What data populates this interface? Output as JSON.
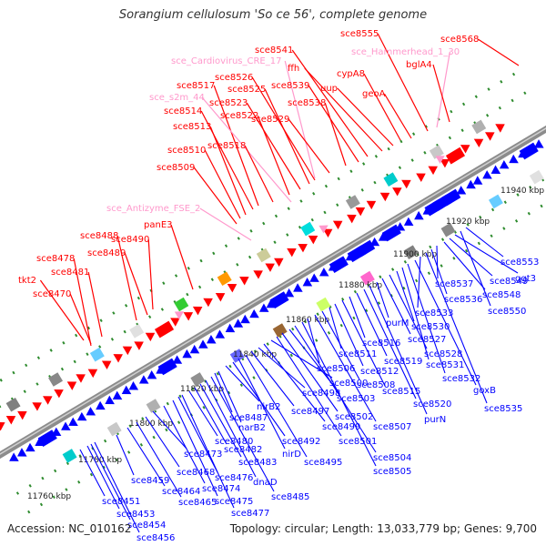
{
  "title": "Sorangium cellulosum 'So ce 56', complete genome",
  "accession": "Accession: NC_010162",
  "summary": "Topology: circular; Length: 13,033,779 bp; Genes: 9,700",
  "colors": {
    "axis": "#8c8c8c",
    "forward": "#ff0000",
    "reverse": "#0000ff",
    "ncrna": "#ff99cc",
    "dots": "#2e8b2e"
  },
  "scale_labels": [
    "11760 kbp",
    "11780 kbp",
    "11800 kbp",
    "11820 kbp",
    "11840 kbp",
    "11860 kbp",
    "11880 kbp",
    "11900 kbp",
    "11920 kbp",
    "11940 kbp"
  ],
  "top_labels": [
    "tkt2",
    "sce8470",
    "sce8478",
    "sce8481",
    "sce8488",
    "sce8489",
    "sce8490",
    "panE3",
    "sce_Antizyme_FSE_2",
    "sce8509",
    "sce8510",
    "sce8513",
    "sce8514",
    "sce8517",
    "sce_s2m_44",
    "sce8518",
    "sce8522",
    "sce8523",
    "sce8525",
    "sce8526",
    "sce_Cardiovirus_CRE_17",
    "sce8529",
    "sce8538",
    "sce8539",
    "sce8541",
    "ffh",
    "uup",
    "cypA8",
    "geoA",
    "sce8555",
    "sce_Hammerhead_1_30",
    "bglA4",
    "sce8568"
  ],
  "bottom_labels": [
    "sce8451",
    "sce8453",
    "sce8454",
    "sce8456",
    "sce8459",
    "sce8464",
    "sce8465",
    "sce8468",
    "sce8473",
    "sce8474",
    "sce8475",
    "sce8476",
    "sce8477",
    "sce8480",
    "sce8482",
    "sce8483",
    "dnaD",
    "sce8485",
    "sce8487",
    "narB2",
    "nirB2",
    "sce8492",
    "nirD",
    "sce8495",
    "sce8497",
    "sce8498",
    "sce8499",
    "sce8500",
    "sce8501",
    "sce8502",
    "sce8503",
    "sce8504",
    "sce8505",
    "sce8506",
    "sce8507",
    "sce8508",
    "sce8511",
    "sce8512",
    "sce8515",
    "sce8516",
    "sce8519",
    "sce8520",
    "purN",
    "purM",
    "sce8527",
    "sce8528",
    "sce8530",
    "sce8531",
    "sce8532",
    "goxB",
    "sce8533",
    "sce8535",
    "sce8536",
    "sce8537",
    "sce8548",
    "sce8549",
    "ggt3",
    "sce8550",
    "sce8553"
  ]
}
